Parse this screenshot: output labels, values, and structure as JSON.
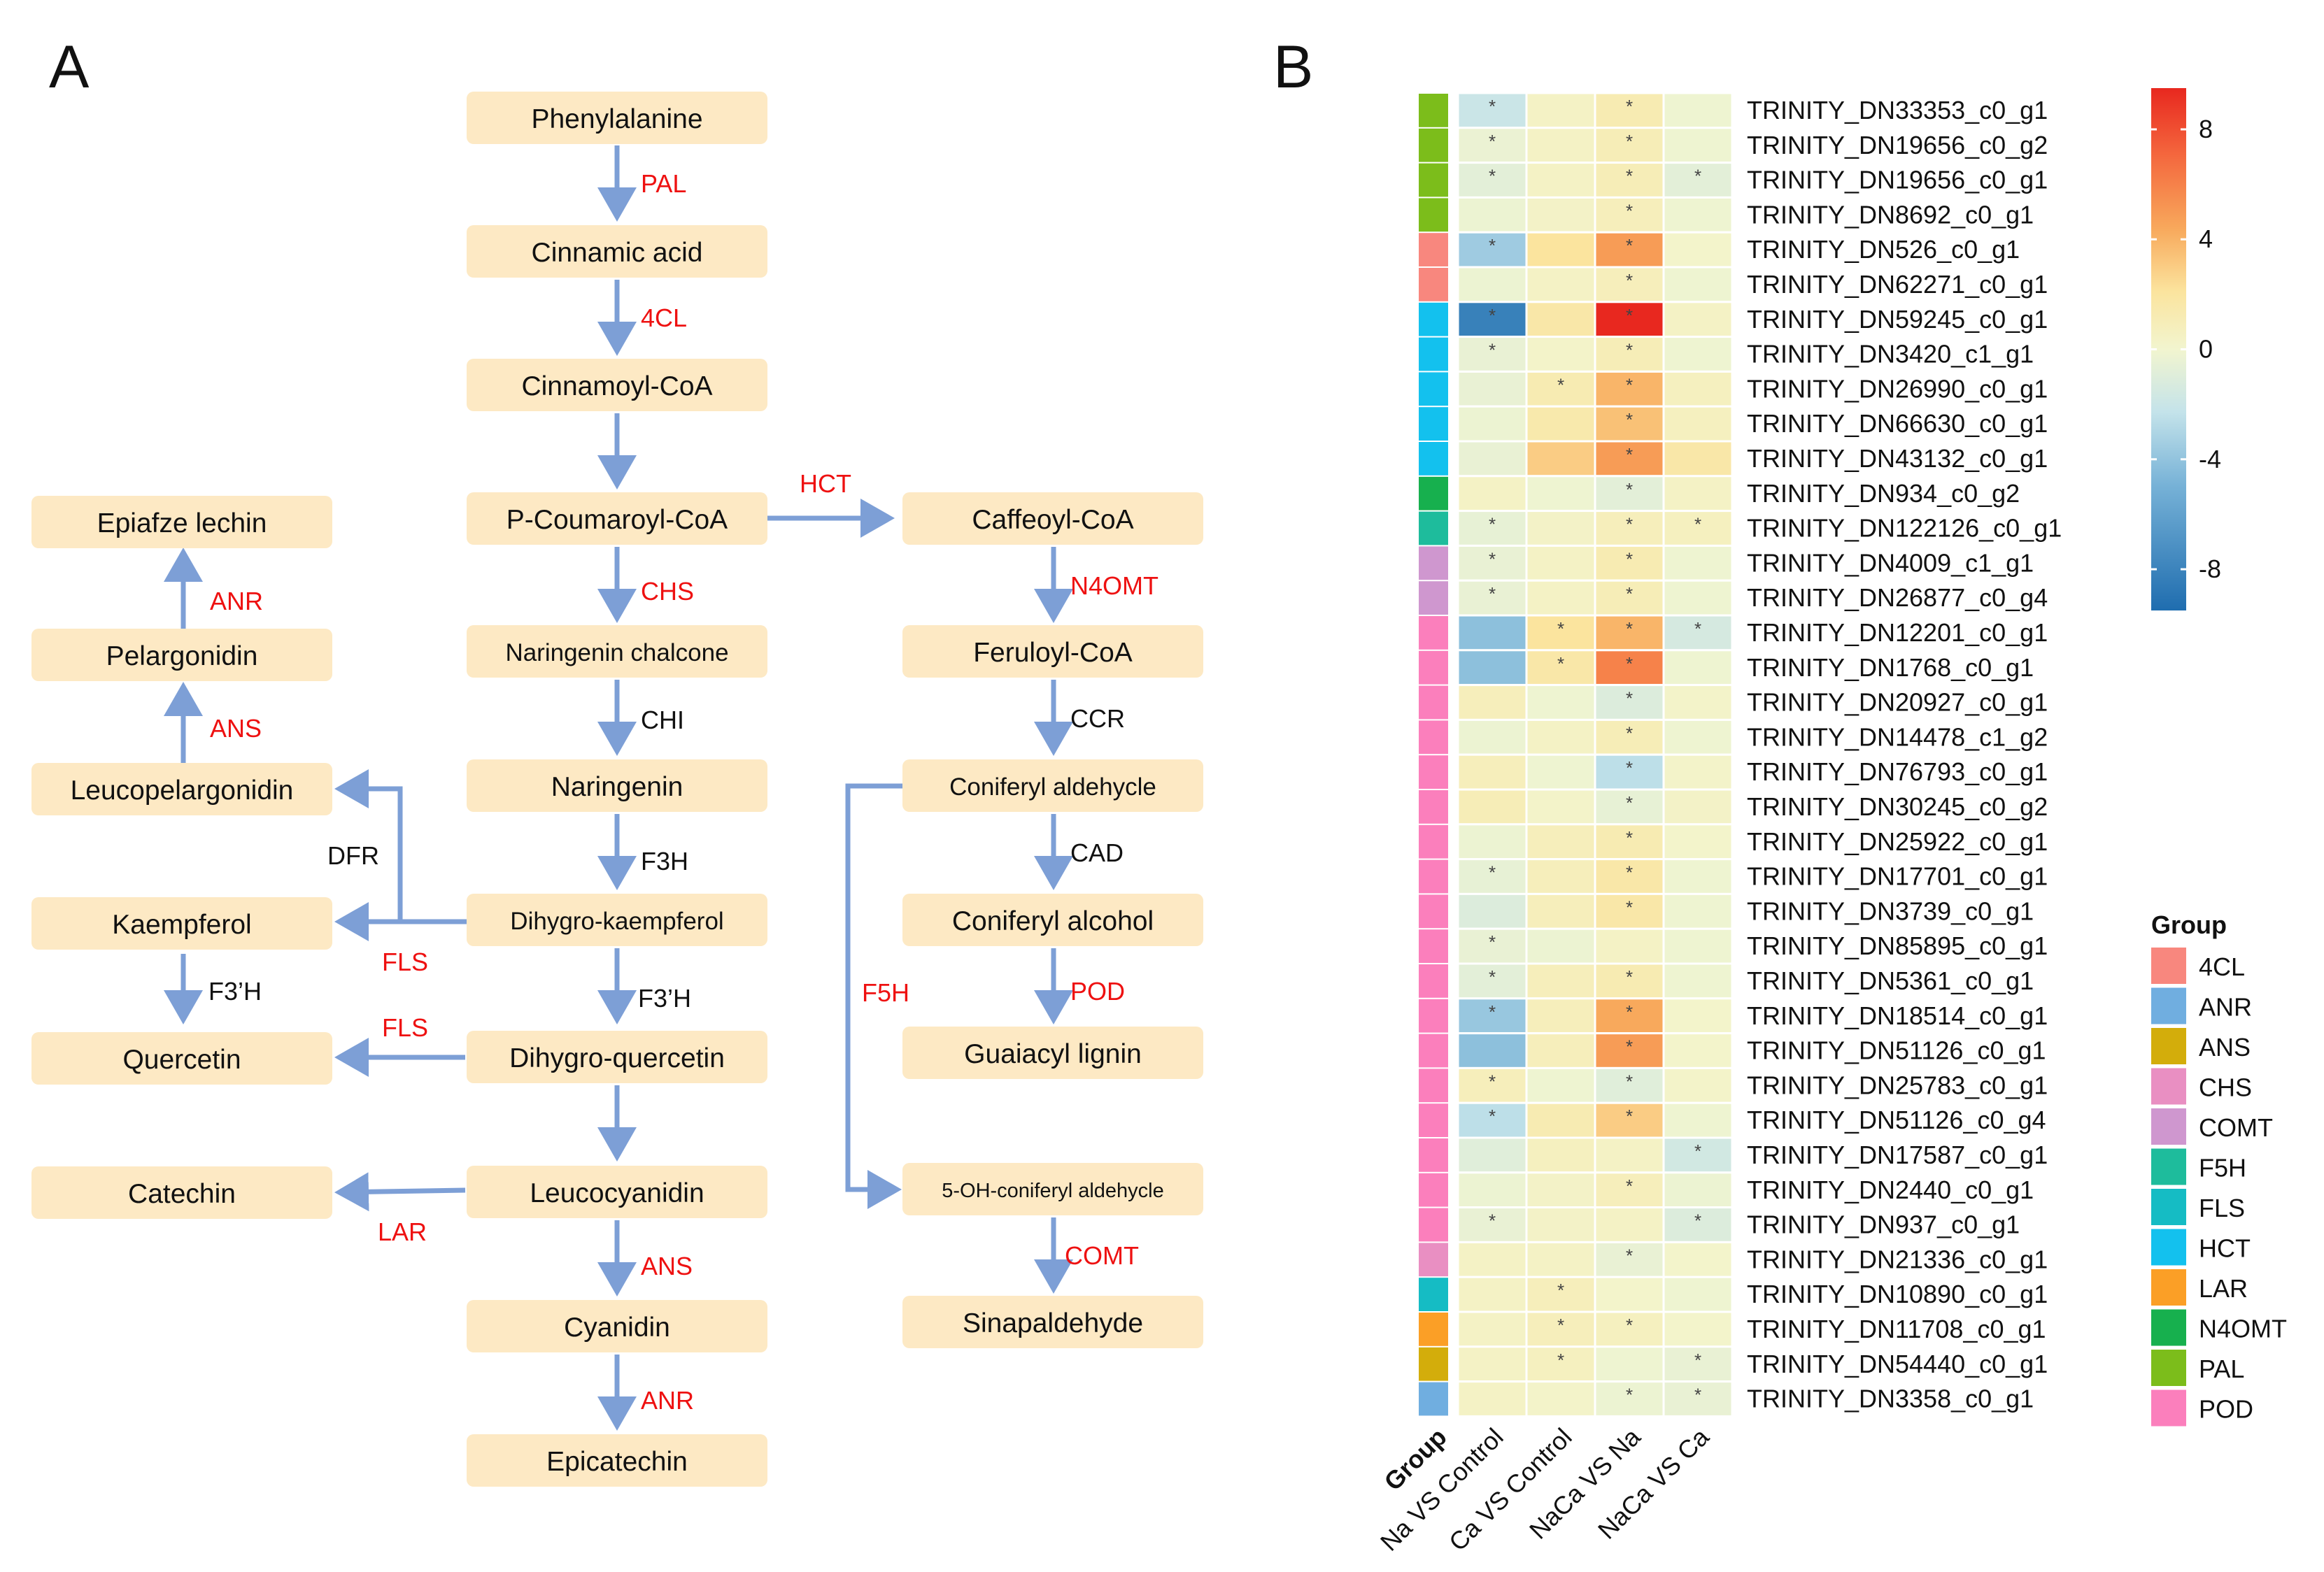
{
  "panels": {
    "a": "A",
    "b": "B"
  },
  "colors": {
    "node_fill": "#fde9c4",
    "arrow": "#7d9fd6",
    "enzyme_red": "#ee1111",
    "enzyme_black": "#111111"
  },
  "pathway": {
    "nodes": [
      {
        "id": "phe",
        "label": "Phenylalanine"
      },
      {
        "id": "cin",
        "label": "Cinnamic acid"
      },
      {
        "id": "cinc",
        "label": "Cinnamoyl-CoA"
      },
      {
        "id": "pcou",
        "label": "P-Coumaroyl-CoA"
      },
      {
        "id": "nch",
        "label": "Naringenin chalcone"
      },
      {
        "id": "nar",
        "label": "Naringenin"
      },
      {
        "id": "dhk",
        "label": "Dihygro-kaempferol"
      },
      {
        "id": "dhq",
        "label": "Dihygro-quercetin"
      },
      {
        "id": "lcy",
        "label": "Leucocyanidin"
      },
      {
        "id": "cya",
        "label": "Cyanidin"
      },
      {
        "id": "epc",
        "label": "Epicatechin"
      },
      {
        "id": "epl",
        "label": "Epiafze lechin"
      },
      {
        "id": "pel",
        "label": "Pelargonidin"
      },
      {
        "id": "lpe",
        "label": "Leucopelargonidin"
      },
      {
        "id": "kae",
        "label": "Kaempferol"
      },
      {
        "id": "que",
        "label": "Quercetin"
      },
      {
        "id": "cat",
        "label": "Catechin"
      },
      {
        "id": "caf",
        "label": "Caffeoyl-CoA"
      },
      {
        "id": "fer",
        "label": "Feruloyl-CoA"
      },
      {
        "id": "cald",
        "label": "Coniferyl aldehycle"
      },
      {
        "id": "calc",
        "label": "Coniferyl alcohol"
      },
      {
        "id": "gua",
        "label": "Guaiacyl lignin"
      },
      {
        "id": "ohc",
        "label": "5-OH-coniferyl aldehycle"
      },
      {
        "id": "sin",
        "label": "Sinapaldehyde"
      }
    ],
    "enzymes": [
      {
        "label": "PAL",
        "color": "red"
      },
      {
        "label": "4CL",
        "color": "red"
      },
      {
        "label": "HCT",
        "color": "red"
      },
      {
        "label": "CHS",
        "color": "red"
      },
      {
        "label": "CHI",
        "color": "black"
      },
      {
        "label": "F3H",
        "color": "black"
      },
      {
        "label": "F3’H",
        "color": "black"
      },
      {
        "label": "ANS",
        "color": "red"
      },
      {
        "label": "ANR",
        "color": "red"
      },
      {
        "label": "ANR",
        "color": "red"
      },
      {
        "label": "ANS",
        "color": "red"
      },
      {
        "label": "DFR",
        "color": "black"
      },
      {
        "label": "FLS",
        "color": "red"
      },
      {
        "label": "F3’H",
        "color": "black"
      },
      {
        "label": "FLS",
        "color": "red"
      },
      {
        "label": "LAR",
        "color": "red"
      },
      {
        "label": "N4OMT",
        "color": "red"
      },
      {
        "label": "CCR",
        "color": "black"
      },
      {
        "label": "CAD",
        "color": "black"
      },
      {
        "label": "POD",
        "color": "red"
      },
      {
        "label": "F5H",
        "color": "red"
      },
      {
        "label": "COMT",
        "color": "red"
      }
    ]
  },
  "heatmap": {
    "columns": [
      "Na VS Control",
      "Ca VS Control",
      "NaCa VS Na",
      "NaCa VS Ca"
    ],
    "group_col_label": "Group",
    "rows": [
      {
        "gene": "TRINITY_DN33353_c0_g1",
        "group": "PAL",
        "values": [
          -2.2,
          0.5,
          1.5,
          -0.2
        ],
        "sig": [
          1,
          0,
          1,
          0
        ]
      },
      {
        "gene": "TRINITY_DN19656_c0_g2",
        "group": "PAL",
        "values": [
          -0.4,
          0.5,
          1.2,
          -0.2
        ],
        "sig": [
          1,
          0,
          1,
          0
        ]
      },
      {
        "gene": "TRINITY_DN19656_c0_g1",
        "group": "PAL",
        "values": [
          -0.8,
          0.5,
          1.2,
          -0.8
        ],
        "sig": [
          1,
          0,
          1,
          1
        ]
      },
      {
        "gene": "TRINITY_DN8692_c0_g1",
        "group": "PAL",
        "values": [
          -0.3,
          0.4,
          1.0,
          -0.2
        ],
        "sig": [
          0,
          0,
          1,
          0
        ]
      },
      {
        "gene": "TRINITY_DN526_c0_g1",
        "group": "4CL",
        "values": [
          -4.2,
          2.5,
          5.5,
          0.2
        ],
        "sig": [
          1,
          0,
          1,
          0
        ]
      },
      {
        "gene": "TRINITY_DN62271_c0_g1",
        "group": "4CL",
        "values": [
          -0.3,
          0.5,
          1.0,
          -0.2
        ],
        "sig": [
          0,
          0,
          1,
          0
        ]
      },
      {
        "gene": "TRINITY_DN59245_c0_g1",
        "group": "HCT",
        "values": [
          -8.5,
          2.0,
          9.5,
          0.5
        ],
        "sig": [
          1,
          0,
          1,
          0
        ]
      },
      {
        "gene": "TRINITY_DN3420_c1_g1",
        "group": "HCT",
        "values": [
          -0.5,
          0.3,
          1.2,
          -0.2
        ],
        "sig": [
          1,
          0,
          1,
          0
        ]
      },
      {
        "gene": "TRINITY_DN26990_c0_g1",
        "group": "HCT",
        "values": [
          -0.5,
          1.5,
          4.5,
          0.8
        ],
        "sig": [
          0,
          1,
          1,
          0
        ]
      },
      {
        "gene": "TRINITY_DN66630_c0_g1",
        "group": "HCT",
        "values": [
          -0.3,
          1.8,
          4.0,
          0.8
        ],
        "sig": [
          0,
          0,
          1,
          0
        ]
      },
      {
        "gene": "TRINITY_DN43132_c0_g1",
        "group": "HCT",
        "values": [
          -0.5,
          3.5,
          5.5,
          2.0
        ],
        "sig": [
          0,
          0,
          1,
          0
        ]
      },
      {
        "gene": "TRINITY_DN934_c0_g2",
        "group": "N4OMT",
        "values": [
          0.5,
          -0.2,
          -0.8,
          0.5
        ],
        "sig": [
          0,
          0,
          1,
          0
        ]
      },
      {
        "gene": "TRINITY_DN122126_c0_g1",
        "group": "F5H",
        "values": [
          -0.6,
          0.4,
          1.0,
          0.8
        ],
        "sig": [
          1,
          0,
          1,
          1
        ]
      },
      {
        "gene": "TRINITY_DN4009_c1_g1",
        "group": "COMT",
        "values": [
          -0.5,
          0.5,
          1.5,
          -0.2
        ],
        "sig": [
          1,
          0,
          1,
          0
        ]
      },
      {
        "gene": "TRINITY_DN26877_c0_g4",
        "group": "COMT",
        "values": [
          -0.5,
          0.5,
          1.2,
          -0.2
        ],
        "sig": [
          1,
          0,
          1,
          0
        ]
      },
      {
        "gene": "TRINITY_DN12201_c0_g1",
        "group": "POD",
        "values": [
          -5.0,
          2.5,
          4.5,
          -1.6
        ],
        "sig": [
          0,
          1,
          1,
          1
        ]
      },
      {
        "gene": "TRINITY_DN1768_c0_g1",
        "group": "POD",
        "values": [
          -5.0,
          2.0,
          6.5,
          -0.2
        ],
        "sig": [
          0,
          1,
          1,
          0
        ]
      },
      {
        "gene": "TRINITY_DN20927_c0_g1",
        "group": "POD",
        "values": [
          1.0,
          -0.2,
          -1.2,
          0.3
        ],
        "sig": [
          0,
          0,
          1,
          0
        ]
      },
      {
        "gene": "TRINITY_DN14478_c1_g2",
        "group": "POD",
        "values": [
          -0.3,
          0.5,
          1.2,
          -0.2
        ],
        "sig": [
          0,
          0,
          1,
          0
        ]
      },
      {
        "gene": "TRINITY_DN76793_c0_g1",
        "group": "POD",
        "values": [
          1.0,
          -0.2,
          -2.8,
          0.3
        ],
        "sig": [
          0,
          0,
          1,
          0
        ]
      },
      {
        "gene": "TRINITY_DN30245_c0_g2",
        "group": "POD",
        "values": [
          1.2,
          0.3,
          -0.6,
          0.4
        ],
        "sig": [
          0,
          0,
          1,
          0
        ]
      },
      {
        "gene": "TRINITY_DN25922_c0_g1",
        "group": "POD",
        "values": [
          -0.3,
          1.0,
          1.5,
          0.2
        ],
        "sig": [
          0,
          0,
          1,
          0
        ]
      },
      {
        "gene": "TRINITY_DN17701_c0_g1",
        "group": "POD",
        "values": [
          -0.6,
          1.0,
          2.0,
          -0.2
        ],
        "sig": [
          1,
          0,
          1,
          0
        ]
      },
      {
        "gene": "TRINITY_DN3739_c0_g1",
        "group": "POD",
        "values": [
          -1.2,
          1.0,
          2.0,
          -0.2
        ],
        "sig": [
          0,
          0,
          1,
          0
        ]
      },
      {
        "gene": "TRINITY_DN85895_c0_g1",
        "group": "POD",
        "values": [
          -0.5,
          -0.3,
          0.5,
          -0.2
        ],
        "sig": [
          1,
          0,
          0,
          0
        ]
      },
      {
        "gene": "TRINITY_DN5361_c0_g1",
        "group": "POD",
        "values": [
          -0.8,
          1.0,
          1.5,
          -0.2
        ],
        "sig": [
          1,
          0,
          1,
          0
        ]
      },
      {
        "gene": "TRINITY_DN18514_c0_g1",
        "group": "POD",
        "values": [
          -4.5,
          1.0,
          5.0,
          0.2
        ],
        "sig": [
          1,
          0,
          1,
          0
        ]
      },
      {
        "gene": "TRINITY_DN51126_c0_g1",
        "group": "POD",
        "values": [
          -5.0,
          1.0,
          5.5,
          0.2
        ],
        "sig": [
          0,
          0,
          1,
          0
        ]
      },
      {
        "gene": "TRINITY_DN25783_c0_g1",
        "group": "POD",
        "values": [
          1.0,
          -0.2,
          -1.0,
          0.3
        ],
        "sig": [
          1,
          0,
          1,
          0
        ]
      },
      {
        "gene": "TRINITY_DN51126_c0_g4",
        "group": "POD",
        "values": [
          -2.8,
          1.5,
          3.5,
          -0.2
        ],
        "sig": [
          1,
          0,
          1,
          0
        ]
      },
      {
        "gene": "TRINITY_DN17587_c0_g1",
        "group": "POD",
        "values": [
          -1.0,
          0.8,
          0.5,
          -1.8
        ],
        "sig": [
          0,
          0,
          0,
          1
        ]
      },
      {
        "gene": "TRINITY_DN2440_c0_g1",
        "group": "POD",
        "values": [
          -0.3,
          0.4,
          1.0,
          -0.3
        ],
        "sig": [
          0,
          0,
          1,
          0
        ]
      },
      {
        "gene": "TRINITY_DN937_c0_g1",
        "group": "POD",
        "values": [
          -0.5,
          0.4,
          0.5,
          -1.2
        ],
        "sig": [
          1,
          0,
          0,
          1
        ]
      },
      {
        "gene": "TRINITY_DN21336_c0_g1",
        "group": "CHS",
        "values": [
          0.5,
          0.5,
          -0.5,
          0.2
        ],
        "sig": [
          0,
          0,
          1,
          0
        ]
      },
      {
        "gene": "TRINITY_DN10890_c0_g1",
        "group": "FLS",
        "values": [
          0.5,
          1.0,
          0.2,
          -0.2
        ],
        "sig": [
          0,
          1,
          0,
          0
        ]
      },
      {
        "gene": "TRINITY_DN11708_c0_g1",
        "group": "LAR",
        "values": [
          0.5,
          1.0,
          0.8,
          0.2
        ],
        "sig": [
          0,
          1,
          1,
          0
        ]
      },
      {
        "gene": "TRINITY_DN54440_c0_g1",
        "group": "ANS",
        "values": [
          0.5,
          0.8,
          -0.2,
          -0.5
        ],
        "sig": [
          0,
          1,
          0,
          1
        ]
      },
      {
        "gene": "TRINITY_DN3358_c0_g1",
        "group": "ANR",
        "values": [
          0.5,
          0.3,
          -0.3,
          -0.5
        ],
        "sig": [
          0,
          0,
          1,
          1
        ]
      }
    ]
  },
  "colorbar": {
    "ticks": [
      "8",
      "4",
      "0",
      "-4",
      "-8"
    ]
  },
  "legend": {
    "title": "Group",
    "items": [
      {
        "label": "4CL",
        "color": "#f8877e"
      },
      {
        "label": "ANR",
        "color": "#70aee0"
      },
      {
        "label": "ANS",
        "color": "#d3ad0b"
      },
      {
        "label": "CHS",
        "color": "#e98fc2"
      },
      {
        "label": "COMT",
        "color": "#cf97cf"
      },
      {
        "label": "F5H",
        "color": "#1ebc9c"
      },
      {
        "label": "FLS",
        "color": "#15bcc4"
      },
      {
        "label": "HCT",
        "color": "#13c1ee"
      },
      {
        "label": "LAR",
        "color": "#fb9f26"
      },
      {
        "label": "N4OMT",
        "color": "#17b04e"
      },
      {
        "label": "PAL",
        "color": "#7cbd1b"
      },
      {
        "label": "POD",
        "color": "#fb7fbc"
      }
    ]
  },
  "chart_data": {
    "type": "heatmap",
    "title": "",
    "columns": [
      "Na VS Control",
      "Ca VS Control",
      "NaCa VS Na",
      "NaCa VS Ca"
    ],
    "color_range": [
      -9.5,
      9.5
    ],
    "colorbar_ticks": [
      8,
      4,
      0,
      -4,
      -8
    ],
    "significance_marker": "*"
  }
}
